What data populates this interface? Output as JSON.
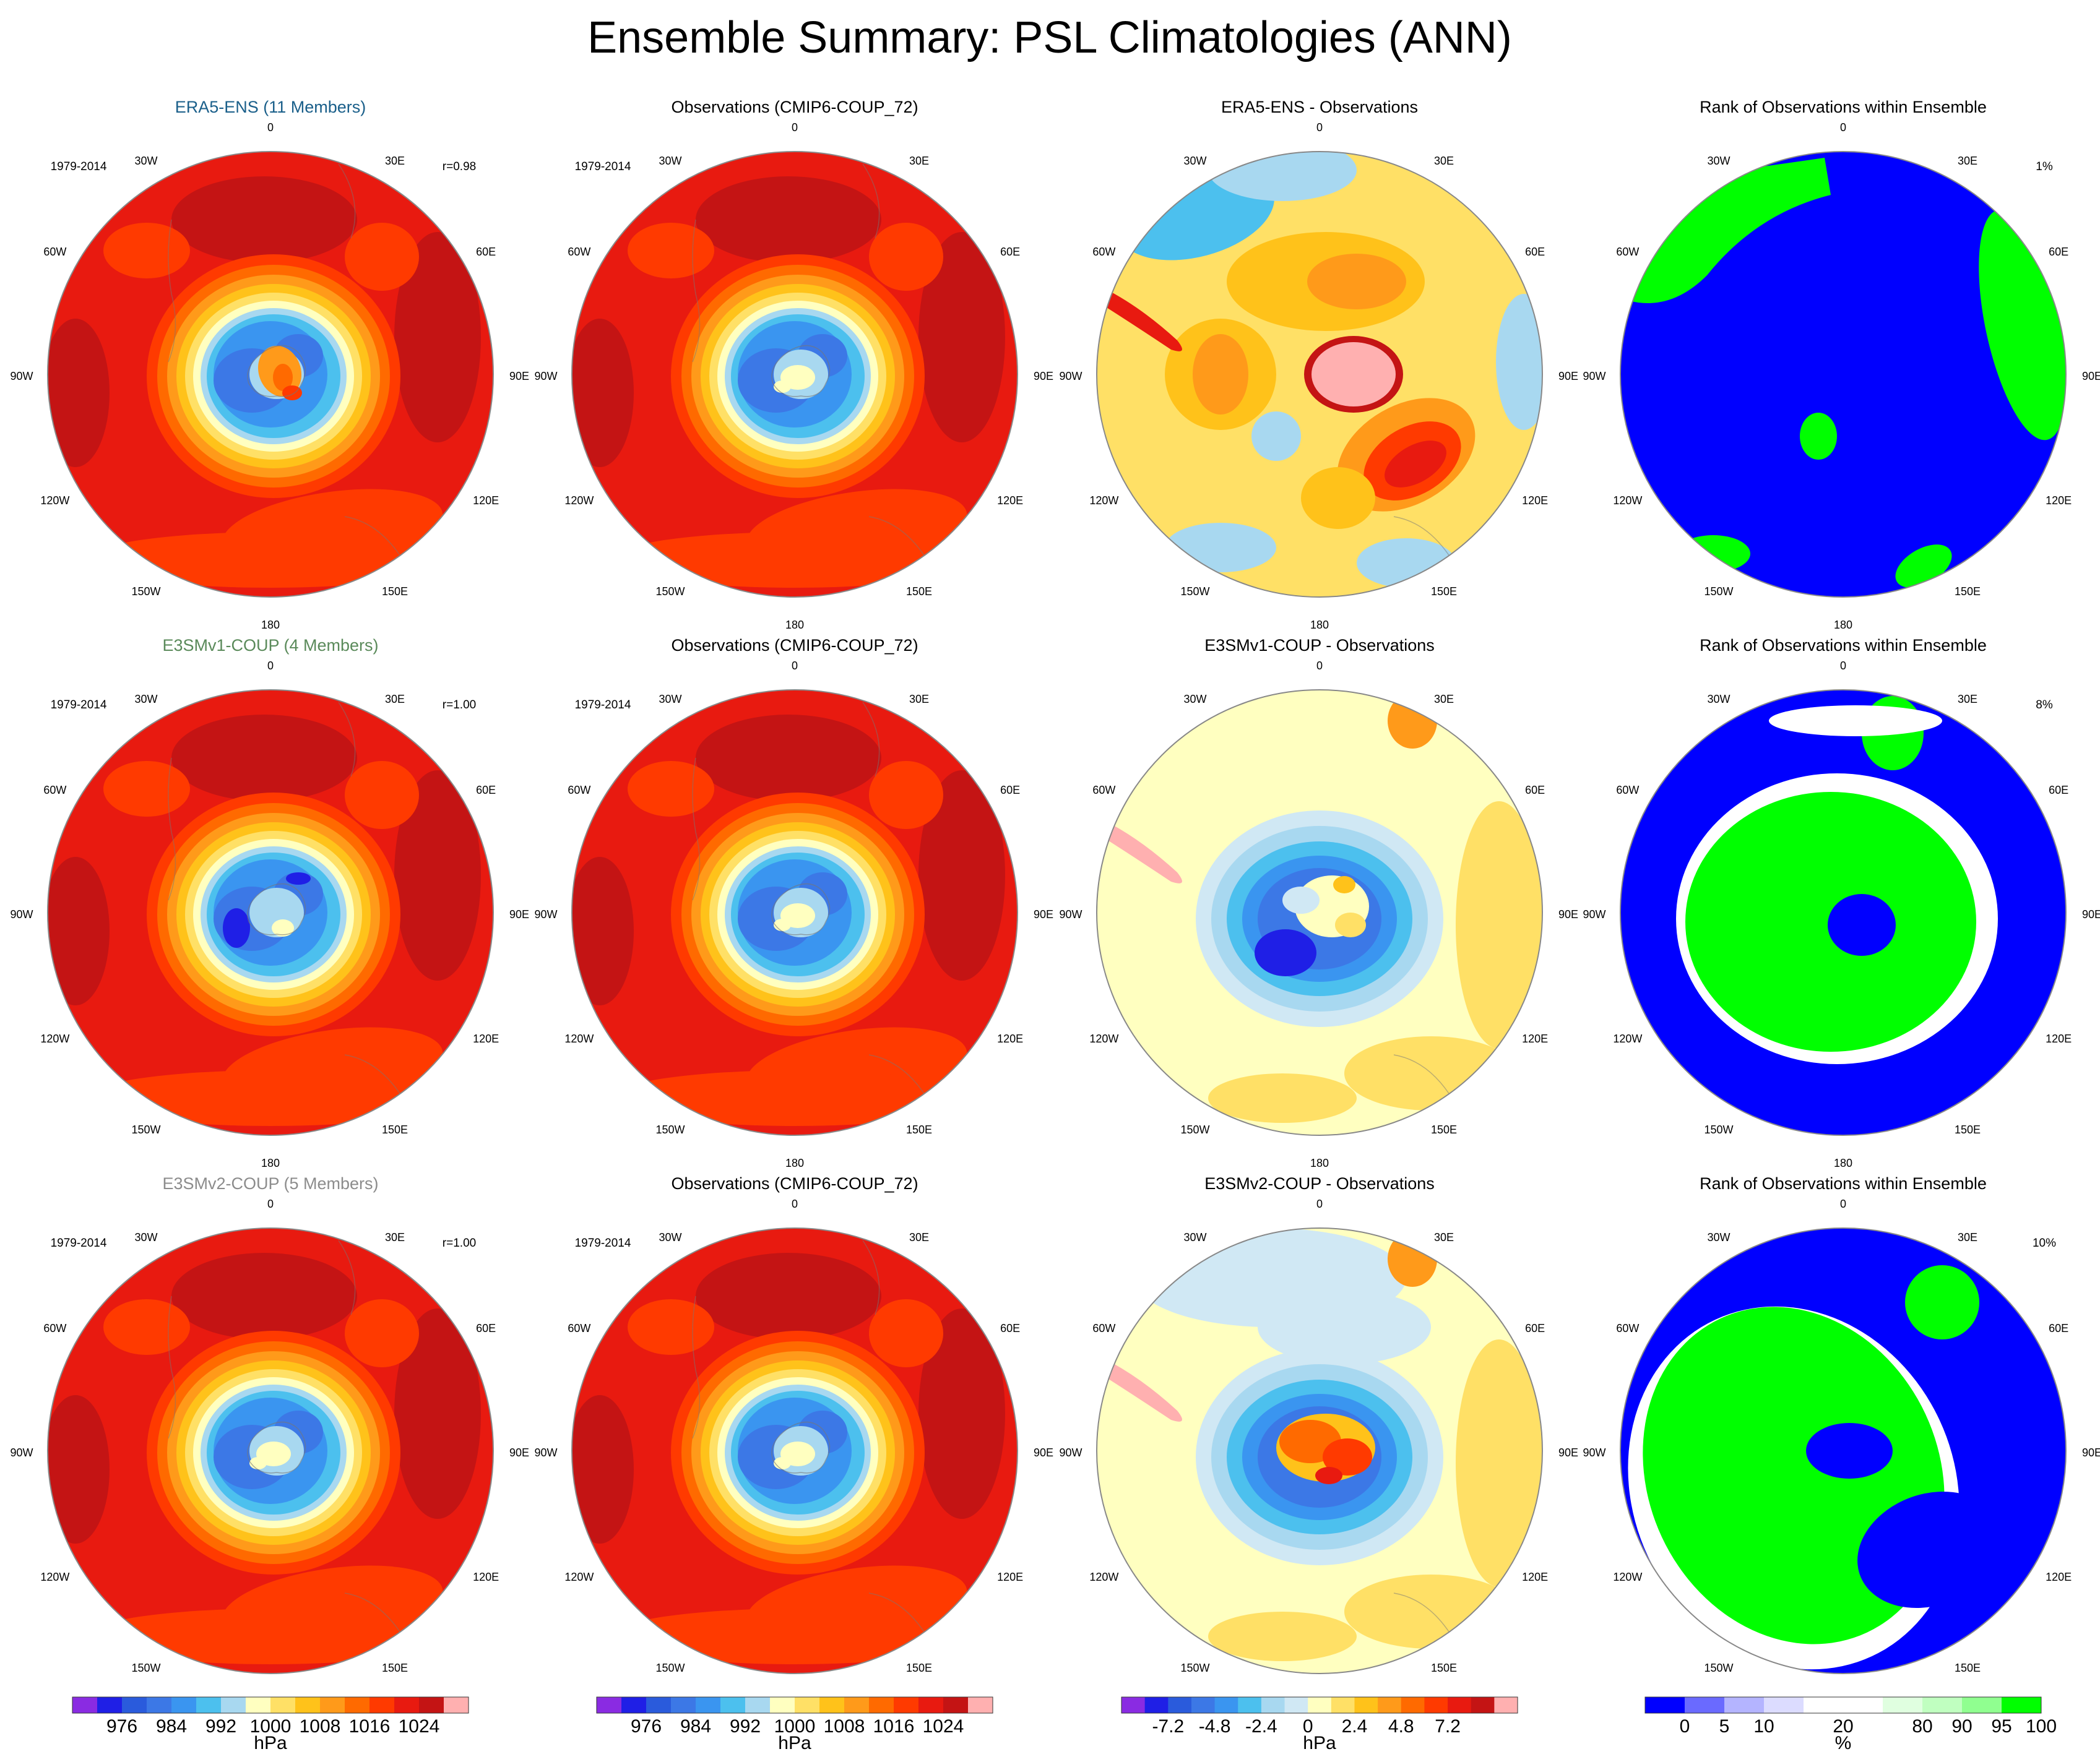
{
  "title": "Ensemble Summary: PSL Climatologies (ANN)",
  "colors": {
    "psl": [
      "#8a2be2",
      "#1f1fe6",
      "#2a5bdc",
      "#3c78e6",
      "#3a95f0",
      "#4cc0ee",
      "#a8d8f0",
      "#ffffc0",
      "#ffe066",
      "#ffc21a",
      "#ff9a1a",
      "#ff6a00",
      "#ff3a00",
      "#e81a10",
      "#c41414",
      "#ffb0b0"
    ],
    "diff": [
      "#8a2be2",
      "#1f1fe6",
      "#2a5bdc",
      "#3c78e6",
      "#3a95f0",
      "#4cc0ee",
      "#a8d8f0",
      "#d0e8f4",
      "#ffffc0",
      "#ffe066",
      "#ffc21a",
      "#ff9a1a",
      "#ff6a00",
      "#ff3a00",
      "#e81a10",
      "#c41414",
      "#ffb0b0"
    ],
    "rank": [
      "#0000ff",
      "#6a6aff",
      "#b4b4ff",
      "#dcdcff",
      "#ffffff",
      "#ffffff",
      "#e0ffe0",
      "#c0ffc0",
      "#90ff90",
      "#00ff00"
    ]
  },
  "lon_labels": [
    "0",
    "30E",
    "60E",
    "90E",
    "120E",
    "150E",
    "180",
    "150W",
    "120W",
    "90W",
    "60W",
    "30W"
  ],
  "rows": [
    {
      "model": {
        "title": "ERA5-ENS (11 Members)",
        "title_color": "#1a5f8a",
        "period": "1979-2014",
        "corr": "r=0.98"
      },
      "obs": {
        "title": "Observations (CMIP6-COUP_72)",
        "period": "1979-2014"
      },
      "diff": {
        "title": "ERA5-ENS - Observations"
      },
      "rank": {
        "title": "Rank of Observations within Ensemble",
        "pct": "1%"
      }
    },
    {
      "model": {
        "title": "E3SMv1-COUP (4 Members)",
        "title_color": "#5a8a5a",
        "period": "1979-2014",
        "corr": "r=1.00"
      },
      "obs": {
        "title": "Observations (CMIP6-COUP_72)",
        "period": "1979-2014"
      },
      "diff": {
        "title": "E3SMv1-COUP - Observations"
      },
      "rank": {
        "title": "Rank of Observations within Ensemble",
        "pct": "8%"
      }
    },
    {
      "model": {
        "title": "E3SMv2-COUP (5 Members)",
        "title_color": "#8c8c8c",
        "period": "1979-2014",
        "corr": "r=1.00"
      },
      "obs": {
        "title": "Observations (CMIP6-COUP_72)",
        "period": "1979-2014"
      },
      "diff": {
        "title": "E3SMv2-COUP - Observations"
      },
      "rank": {
        "title": "Rank of Observations within Ensemble",
        "pct": "10%"
      }
    }
  ],
  "colorbars": [
    {
      "unit": "hPa",
      "labels": [
        "976",
        "984",
        "992",
        "1000",
        "1008",
        "1016",
        "1024"
      ],
      "palette": "psl"
    },
    {
      "unit": "hPa",
      "labels": [
        "976",
        "984",
        "992",
        "1000",
        "1008",
        "1016",
        "1024"
      ],
      "palette": "psl"
    },
    {
      "unit": "hPa",
      "labels": [
        "-7.2",
        "-4.8",
        "-2.4",
        "0",
        "2.4",
        "4.8",
        "7.2"
      ],
      "palette": "diff"
    },
    {
      "unit": "%",
      "labels": [
        "0",
        "5",
        "10",
        "20",
        "80",
        "90",
        "95",
        "100"
      ],
      "palette": "rank"
    }
  ],
  "chart_data": [
    {
      "type": "heatmap",
      "panel": "ERA5-ENS (11 Members)",
      "variable": "PSL",
      "units": "hPa",
      "period": "1979-2014",
      "corr": 0.98,
      "levels": [
        976,
        984,
        992,
        1000,
        1008,
        1016,
        1024
      ]
    },
    {
      "type": "heatmap",
      "panel": "Observations (CMIP6-COUP_72)",
      "variable": "PSL",
      "units": "hPa",
      "period": "1979-2014",
      "levels": [
        976,
        984,
        992,
        1000,
        1008,
        1016,
        1024
      ]
    },
    {
      "type": "heatmap",
      "panel": "ERA5-ENS - Observations",
      "units": "hPa",
      "levels": [
        -7.2,
        -4.8,
        -2.4,
        0,
        2.4,
        4.8,
        7.2
      ]
    },
    {
      "type": "heatmap",
      "panel": "Rank of Observations within Ensemble",
      "units": "%",
      "pct_outside": "1%",
      "levels": [
        0,
        5,
        10,
        20,
        80,
        90,
        95,
        100
      ]
    },
    {
      "type": "heatmap",
      "panel": "E3SMv1-COUP (4 Members)",
      "variable": "PSL",
      "units": "hPa",
      "period": "1979-2014",
      "corr": 1.0
    },
    {
      "type": "heatmap",
      "panel": "E3SMv1-COUP - Observations",
      "units": "hPa"
    },
    {
      "type": "heatmap",
      "panel": "Rank of Observations within Ensemble",
      "units": "%",
      "pct_outside": "8%"
    },
    {
      "type": "heatmap",
      "panel": "E3SMv2-COUP (5 Members)",
      "variable": "PSL",
      "units": "hPa",
      "period": "1979-2014",
      "corr": 1.0
    },
    {
      "type": "heatmap",
      "panel": "E3SMv2-COUP - Observations",
      "units": "hPa"
    },
    {
      "type": "heatmap",
      "panel": "Rank of Observations within Ensemble",
      "units": "%",
      "pct_outside": "10%"
    }
  ]
}
